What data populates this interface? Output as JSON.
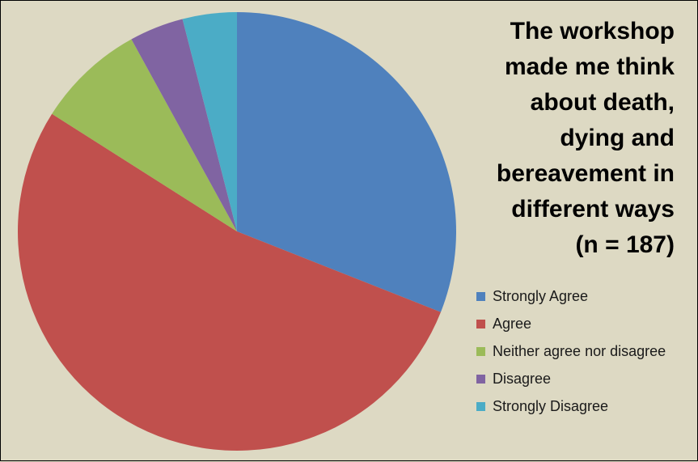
{
  "chart_data": {
    "type": "pie",
    "title": "The workshop made me think about death, dying and bereavement in different ways (n = 187)",
    "title_lines": [
      "The workshop",
      "made me think",
      "about death,",
      "dying and",
      "bereavement in",
      "different ways",
      "(n = 187)"
    ],
    "slices": [
      {
        "label": "Strongly Agree",
        "value": 31,
        "color": "#4f81bd"
      },
      {
        "label": "Agree",
        "value": 53,
        "color": "#c0504d"
      },
      {
        "label": "Neither agree nor disagree",
        "value": 8,
        "color": "#9bbb59"
      },
      {
        "label": "Disagree",
        "value": 4,
        "color": "#8064a2"
      },
      {
        "label": "Strongly Disagree",
        "value": 4,
        "color": "#4bacc6"
      }
    ],
    "legend_position": "right",
    "start_angle": "12 o'clock",
    "direction": "clockwise"
  }
}
